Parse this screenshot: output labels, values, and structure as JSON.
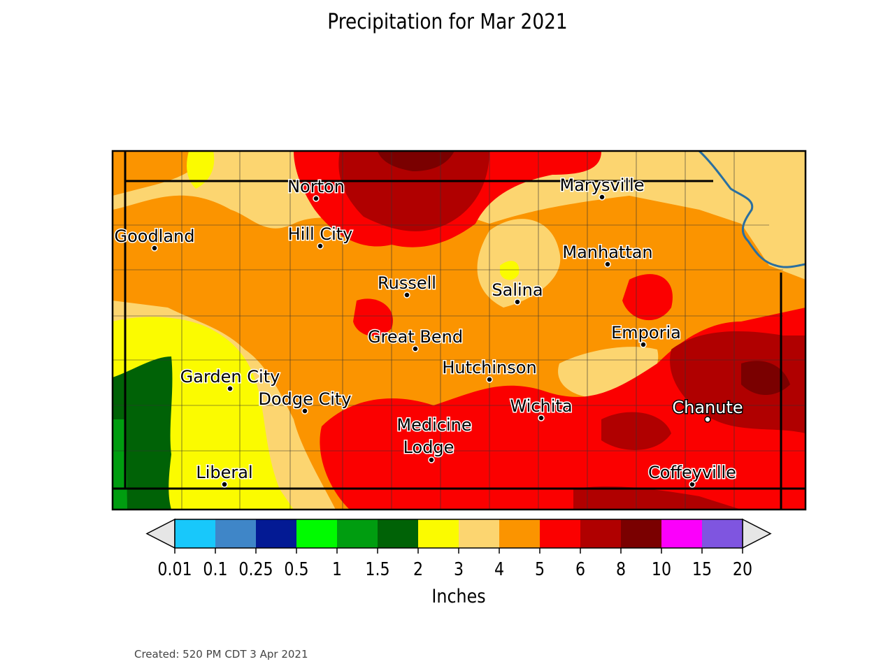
{
  "title": "Precipitation for Mar 2021",
  "cities": [
    {
      "name": "Norton",
      "label_side": "normal"
    },
    {
      "name": "Marysville",
      "label_side": "normal"
    },
    {
      "name": "Goodland",
      "label_side": "normal"
    },
    {
      "name": "Hill City",
      "label_side": "normal"
    },
    {
      "name": "Manhattan",
      "label_side": "normal"
    },
    {
      "name": "Russell",
      "label_side": "normal"
    },
    {
      "name": "Salina",
      "label_side": "normal"
    },
    {
      "name": "Emporia",
      "label_side": "normal"
    },
    {
      "name": "Great Bend",
      "label_side": "normal"
    },
    {
      "name": "Hutchinson",
      "label_side": "normal"
    },
    {
      "name": "Garden City",
      "label_side": "normal"
    },
    {
      "name": "Dodge City",
      "label_side": "normal"
    },
    {
      "name": "Wichita",
      "label_side": "normal"
    },
    {
      "name": "Chanute",
      "label_side": "inverted"
    },
    {
      "name": "Medicine",
      "label_side": "normal"
    },
    {
      "name": "Lodge",
      "label_side": "normal"
    },
    {
      "name": "Liberal",
      "label_side": "normal"
    },
    {
      "name": "Coffeyville",
      "label_side": "normal"
    }
  ],
  "colorbar": {
    "label": "Inches",
    "ticks": [
      "0.01",
      "0.1",
      "0.25",
      "0.5",
      "1",
      "1.5",
      "2",
      "3",
      "4",
      "5",
      "6",
      "8",
      "10",
      "15",
      "20"
    ],
    "colors": [
      "#18c8fb",
      "#3f86c8",
      "#031a94",
      "#00fb00",
      "#009d10",
      "#006206",
      "#fbfb00",
      "#fcd570",
      "#fb9400",
      "#fb0000",
      "#b00000",
      "#7a0000",
      "#fb00fb",
      "#7f55e0"
    ],
    "extend_color": "#e6e6e6"
  },
  "created": "Created: 520 PM CDT 3 Apr 2021"
}
